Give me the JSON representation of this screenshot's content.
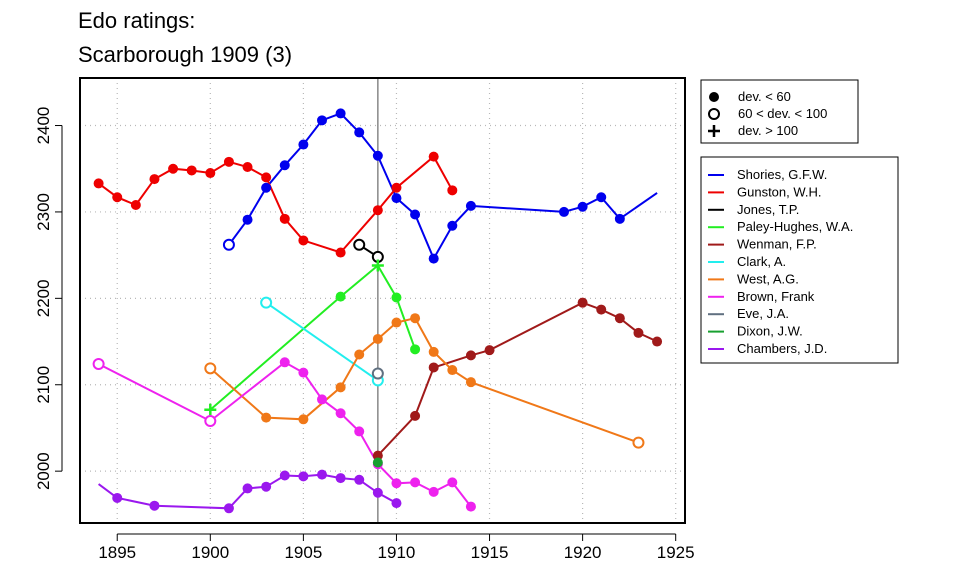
{
  "chart_data": {
    "type": "line",
    "title": [
      "Edo ratings:",
      "Scarborough 1909 (3)"
    ],
    "xlabel": "",
    "ylabel": "",
    "xlim": [
      1893,
      1925.5
    ],
    "ylim": [
      1940,
      2455
    ],
    "x_ticks": [
      1895,
      1900,
      1905,
      1910,
      1915,
      1920,
      1925
    ],
    "y_ticks": [
      2000,
      2100,
      2200,
      2300,
      2400
    ],
    "grid": true,
    "event_marker_year": 1909,
    "dev_legend": [
      {
        "marker": "filled",
        "label": "dev. < 60"
      },
      {
        "marker": "open",
        "label": "60 < dev. < 100"
      },
      {
        "marker": "plus",
        "label": "dev. > 100"
      }
    ],
    "series": [
      {
        "name": "Shories, G.F.W.",
        "color": "#0000ee",
        "points": [
          {
            "x": 1901,
            "y": 2262,
            "m": "open"
          },
          {
            "x": 1902,
            "y": 2291,
            "m": "filled"
          },
          {
            "x": 1903,
            "y": 2328,
            "m": "filled"
          },
          {
            "x": 1904,
            "y": 2354,
            "m": "filled"
          },
          {
            "x": 1905,
            "y": 2378,
            "m": "filled"
          },
          {
            "x": 1906,
            "y": 2406,
            "m": "filled"
          },
          {
            "x": 1907,
            "y": 2414,
            "m": "filled"
          },
          {
            "x": 1908,
            "y": 2392,
            "m": "filled"
          },
          {
            "x": 1909,
            "y": 2365,
            "m": "filled"
          },
          {
            "x": 1910,
            "y": 2316,
            "m": "filled"
          },
          {
            "x": 1911,
            "y": 2297,
            "m": "filled"
          },
          {
            "x": 1912,
            "y": 2246,
            "m": "filled"
          },
          {
            "x": 1913,
            "y": 2284,
            "m": "filled"
          },
          {
            "x": 1914,
            "y": 2307,
            "m": "filled"
          },
          {
            "x": 1919,
            "y": 2300,
            "m": "filled"
          },
          {
            "x": 1920,
            "y": 2306,
            "m": "filled"
          },
          {
            "x": 1921,
            "y": 2317,
            "m": "filled"
          },
          {
            "x": 1922,
            "y": 2292,
            "m": "filled"
          },
          {
            "x": 1924,
            "y": 2322,
            "m": "none"
          }
        ]
      },
      {
        "name": "Gunston, W.H.",
        "color": "#ee0000",
        "points": [
          {
            "x": 1894,
            "y": 2333,
            "m": "filled"
          },
          {
            "x": 1895,
            "y": 2317,
            "m": "filled"
          },
          {
            "x": 1896,
            "y": 2308,
            "m": "filled"
          },
          {
            "x": 1897,
            "y": 2338,
            "m": "filled"
          },
          {
            "x": 1898,
            "y": 2350,
            "m": "filled"
          },
          {
            "x": 1899,
            "y": 2348,
            "m": "filled"
          },
          {
            "x": 1900,
            "y": 2345,
            "m": "filled"
          },
          {
            "x": 1901,
            "y": 2358,
            "m": "filled"
          },
          {
            "x": 1902,
            "y": 2352,
            "m": "filled"
          },
          {
            "x": 1903,
            "y": 2340,
            "m": "filled"
          },
          {
            "x": 1904,
            "y": 2292,
            "m": "filled"
          },
          {
            "x": 1905,
            "y": 2267,
            "m": "filled"
          },
          {
            "x": 1907,
            "y": 2253,
            "m": "filled"
          },
          {
            "x": 1909,
            "y": 2302,
            "m": "filled"
          },
          {
            "x": 1910,
            "y": 2328,
            "m": "filled"
          },
          {
            "x": 1912,
            "y": 2364,
            "m": "filled"
          },
          {
            "x": 1913,
            "y": 2325,
            "m": "filled"
          }
        ]
      },
      {
        "name": "Jones, T.P.",
        "color": "#000000",
        "points": [
          {
            "x": 1908,
            "y": 2262,
            "m": "open"
          },
          {
            "x": 1909,
            "y": 2248,
            "m": "open"
          }
        ]
      },
      {
        "name": "Paley-Hughes, W.A.",
        "color": "#22ee22",
        "points": [
          {
            "x": 1900,
            "y": 2071,
            "m": "plus"
          },
          {
            "x": 1907,
            "y": 2202,
            "m": "filled"
          },
          {
            "x": 1909,
            "y": 2238,
            "m": "plus"
          },
          {
            "x": 1910,
            "y": 2201,
            "m": "filled"
          },
          {
            "x": 1911,
            "y": 2141,
            "m": "filled"
          }
        ]
      },
      {
        "name": "Wenman, F.P.",
        "color": "#a01a1a",
        "points": [
          {
            "x": 1909,
            "y": 2018,
            "m": "filled"
          },
          {
            "x": 1911,
            "y": 2064,
            "m": "filled"
          },
          {
            "x": 1912,
            "y": 2120,
            "m": "filled"
          },
          {
            "x": 1914,
            "y": 2134,
            "m": "filled"
          },
          {
            "x": 1915,
            "y": 2140,
            "m": "filled"
          },
          {
            "x": 1920,
            "y": 2195,
            "m": "filled"
          },
          {
            "x": 1921,
            "y": 2187,
            "m": "filled"
          },
          {
            "x": 1922,
            "y": 2177,
            "m": "filled"
          },
          {
            "x": 1923,
            "y": 2160,
            "m": "filled"
          },
          {
            "x": 1924,
            "y": 2150,
            "m": "filled"
          }
        ]
      },
      {
        "name": "Clark, A.",
        "color": "#22eeee",
        "points": [
          {
            "x": 1903,
            "y": 2195,
            "m": "open"
          },
          {
            "x": 1909,
            "y": 2105,
            "m": "open"
          }
        ]
      },
      {
        "name": "West, A.G.",
        "color": "#f07818",
        "points": [
          {
            "x": 1900,
            "y": 2119,
            "m": "open"
          },
          {
            "x": 1903,
            "y": 2062,
            "m": "filled"
          },
          {
            "x": 1905,
            "y": 2060,
            "m": "filled"
          },
          {
            "x": 1907,
            "y": 2097,
            "m": "filled"
          },
          {
            "x": 1908,
            "y": 2135,
            "m": "filled"
          },
          {
            "x": 1909,
            "y": 2153,
            "m": "filled"
          },
          {
            "x": 1910,
            "y": 2172,
            "m": "filled"
          },
          {
            "x": 1911,
            "y": 2177,
            "m": "filled"
          },
          {
            "x": 1912,
            "y": 2138,
            "m": "filled"
          },
          {
            "x": 1913,
            "y": 2117,
            "m": "filled"
          },
          {
            "x": 1914,
            "y": 2103,
            "m": "filled"
          },
          {
            "x": 1923,
            "y": 2033,
            "m": "open"
          }
        ]
      },
      {
        "name": "Brown, Frank",
        "color": "#ee22ee",
        "points": [
          {
            "x": 1894,
            "y": 2124,
            "m": "open"
          },
          {
            "x": 1900,
            "y": 2058,
            "m": "open"
          },
          {
            "x": 1904,
            "y": 2126,
            "m": "filled"
          },
          {
            "x": 1905,
            "y": 2114,
            "m": "filled"
          },
          {
            "x": 1906,
            "y": 2083,
            "m": "filled"
          },
          {
            "x": 1907,
            "y": 2067,
            "m": "filled"
          },
          {
            "x": 1908,
            "y": 2046,
            "m": "filled"
          },
          {
            "x": 1909,
            "y": 2008,
            "m": "filled"
          },
          {
            "x": 1910,
            "y": 1986,
            "m": "filled"
          },
          {
            "x": 1911,
            "y": 1987,
            "m": "filled"
          },
          {
            "x": 1912,
            "y": 1976,
            "m": "filled"
          },
          {
            "x": 1913,
            "y": 1987,
            "m": "filled"
          },
          {
            "x": 1914,
            "y": 1959,
            "m": "filled"
          }
        ]
      },
      {
        "name": "Eve, J.A.",
        "color": "#607080",
        "points": [
          {
            "x": 1909,
            "y": 2113,
            "m": "open"
          }
        ]
      },
      {
        "name": "Dixon, J.W.",
        "color": "#18a030",
        "points": [
          {
            "x": 1909,
            "y": 2010,
            "m": "filled"
          }
        ]
      },
      {
        "name": "Chambers, J.D.",
        "color": "#9a18ee",
        "points": [
          {
            "x": 1894,
            "y": 1985,
            "m": "none"
          },
          {
            "x": 1895,
            "y": 1969,
            "m": "filled"
          },
          {
            "x": 1897,
            "y": 1960,
            "m": "filled"
          },
          {
            "x": 1901,
            "y": 1957,
            "m": "filled"
          },
          {
            "x": 1902,
            "y": 1980,
            "m": "filled"
          },
          {
            "x": 1903,
            "y": 1982,
            "m": "filled"
          },
          {
            "x": 1904,
            "y": 1995,
            "m": "filled"
          },
          {
            "x": 1905,
            "y": 1994,
            "m": "filled"
          },
          {
            "x": 1906,
            "y": 1996,
            "m": "filled"
          },
          {
            "x": 1907,
            "y": 1992,
            "m": "filled"
          },
          {
            "x": 1908,
            "y": 1990,
            "m": "filled"
          },
          {
            "x": 1909,
            "y": 1975,
            "m": "filled"
          },
          {
            "x": 1910,
            "y": 1963,
            "m": "filled"
          }
        ]
      }
    ]
  }
}
